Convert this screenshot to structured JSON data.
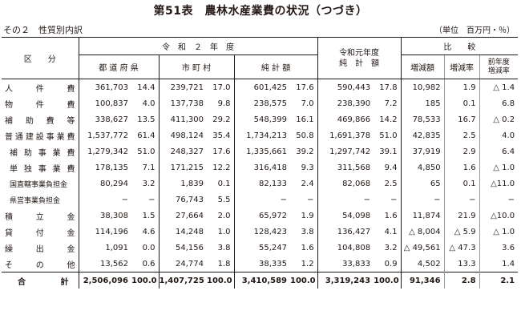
{
  "title": "第51表　農林水産業費の状況（つづき）",
  "subtitle": "その２　性質別内訳",
  "unit": "（単位　百万円・％）",
  "header": {
    "category": "区　　分",
    "reiwa2": "令　和　２　年　度",
    "prefectures": "都 道 府 県",
    "municipalities": "市 町 村",
    "net_total": "純 計 額",
    "reiwa1_line1": "令和元年度",
    "reiwa1_line2": "純　計　額",
    "compare": "比　　較",
    "change_amount": "増減額",
    "change_rate": "増減率",
    "prev_rate_line1": "前年度",
    "prev_rate_line2": "増減率"
  },
  "rows": [
    {
      "label": "人　件　費",
      "pref": "361,703",
      "pref_pct": "14.4",
      "muni": "239,721",
      "muni_pct": "17.0",
      "net": "601,425",
      "net_pct": "17.6",
      "prev": "590,443",
      "prev_pct": "17.8",
      "diff": "10,982",
      "rate": "1.9",
      "prev_rate": "△ 1.4"
    },
    {
      "label": "物　件　費",
      "pref": "100,837",
      "pref_pct": "4.0",
      "muni": "137,738",
      "muni_pct": "9.8",
      "net": "238,575",
      "net_pct": "7.0",
      "prev": "238,390",
      "prev_pct": "7.2",
      "diff": "185",
      "rate": "0.1",
      "prev_rate": "6.8"
    },
    {
      "label": "補　助　費　等",
      "pref": "338,627",
      "pref_pct": "13.5",
      "muni": "411,300",
      "muni_pct": "29.2",
      "net": "548,399",
      "net_pct": "16.1",
      "prev": "469,866",
      "prev_pct": "14.2",
      "diff": "78,533",
      "rate": "16.7",
      "prev_rate": "△ 0.2"
    },
    {
      "label": "普通建設事業費",
      "pref": "1,537,772",
      "pref_pct": "61.4",
      "muni": "498,124",
      "muni_pct": "35.4",
      "net": "1,734,213",
      "net_pct": "50.8",
      "prev": "1,691,378",
      "prev_pct": "51.0",
      "diff": "42,835",
      "rate": "2.5",
      "prev_rate": "4.0"
    },
    {
      "label": "補助事業費",
      "pref": "1,279,342",
      "pref_pct": "51.0",
      "muni": "248,327",
      "muni_pct": "17.6",
      "net": "1,335,661",
      "net_pct": "39.2",
      "prev": "1,297,742",
      "prev_pct": "39.1",
      "diff": "37,919",
      "rate": "2.9",
      "prev_rate": "6.4"
    },
    {
      "label": "単独事業費",
      "pref": "178,135",
      "pref_pct": "7.1",
      "muni": "171,215",
      "muni_pct": "12.2",
      "net": "316,418",
      "net_pct": "9.3",
      "prev": "311,568",
      "prev_pct": "9.4",
      "diff": "4,850",
      "rate": "1.6",
      "prev_rate": "△ 1.0"
    },
    {
      "label": "国直轄事業負担金",
      "pref": "80,294",
      "pref_pct": "3.2",
      "muni": "1,839",
      "muni_pct": "0.1",
      "net": "82,133",
      "net_pct": "2.4",
      "prev": "82,068",
      "prev_pct": "2.5",
      "diff": "65",
      "rate": "0.1",
      "prev_rate": "△11.0"
    },
    {
      "label": "県営事業負担金",
      "pref": "−",
      "pref_pct": "−",
      "muni": "76,743",
      "muni_pct": "5.5",
      "net": "−",
      "net_pct": "−",
      "prev": "−",
      "prev_pct": "−",
      "diff": "−",
      "rate": "−",
      "prev_rate": "−"
    },
    {
      "label": "積　立　金",
      "pref": "38,308",
      "pref_pct": "1.5",
      "muni": "27,664",
      "muni_pct": "2.0",
      "net": "65,972",
      "net_pct": "1.9",
      "prev": "54,098",
      "prev_pct": "1.6",
      "diff": "11,874",
      "rate": "21.9",
      "prev_rate": "△10.0"
    },
    {
      "label": "貸　付　金",
      "pref": "114,196",
      "pref_pct": "4.6",
      "muni": "14,248",
      "muni_pct": "1.0",
      "net": "128,423",
      "net_pct": "3.8",
      "prev": "136,427",
      "prev_pct": "4.1",
      "diff": "△ 8,004",
      "rate": "△ 5.9",
      "prev_rate": "△ 1.0"
    },
    {
      "label": "繰　出　金",
      "pref": "1,091",
      "pref_pct": "0.0",
      "muni": "54,156",
      "muni_pct": "3.8",
      "net": "55,247",
      "net_pct": "1.6",
      "prev": "104,808",
      "prev_pct": "3.2",
      "diff": "△ 49,561",
      "rate": "△ 47.3",
      "prev_rate": "3.6"
    },
    {
      "label": "そ　の　他",
      "pref": "13,562",
      "pref_pct": "0.6",
      "muni": "24,774",
      "muni_pct": "1.8",
      "net": "38,335",
      "net_pct": "1.2",
      "prev": "33,833",
      "prev_pct": "0.9",
      "diff": "4,502",
      "rate": "13.3",
      "prev_rate": "1.4"
    }
  ],
  "total": {
    "label": "合　　計",
    "pref": "2,506,096",
    "pref_pct": "100.0",
    "muni": "1,407,725",
    "muni_pct": "100.0",
    "net": "3,410,589",
    "net_pct": "100.0",
    "prev": "3,319,243",
    "prev_pct": "100.0",
    "diff": "91,346",
    "rate": "2.8",
    "prev_rate": "2.1"
  }
}
